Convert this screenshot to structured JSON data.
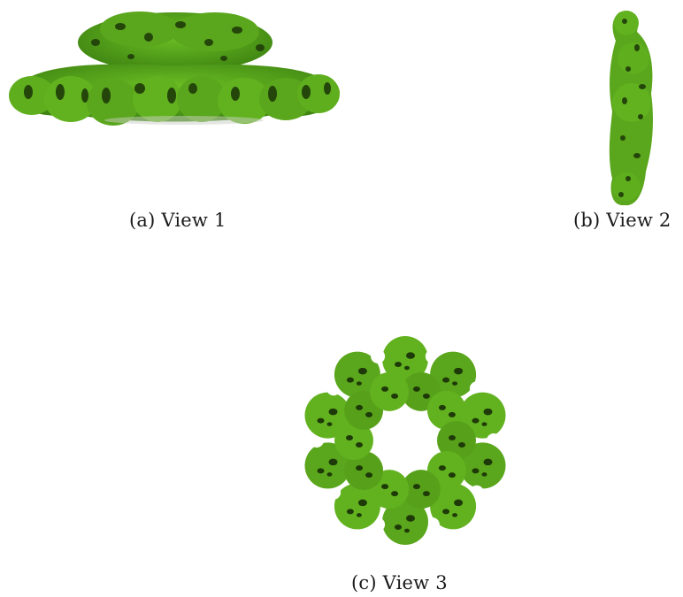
{
  "figure": {
    "panels": [
      {
        "id": "a",
        "caption": "(a) View 1",
        "view": "side view of ring-shaped protein density map"
      },
      {
        "id": "b",
        "caption": "(b) View 2",
        "view": "edge-on view of ring-shaped protein density map"
      },
      {
        "id": "c",
        "caption": "(c) View 3",
        "view": "top-down view of ring-shaped protein density map"
      }
    ],
    "colors": {
      "surface": "#5aa61c",
      "surface_dark": "#2f6a0c",
      "hole": "#1e3a08",
      "background": "#ffffff"
    }
  }
}
